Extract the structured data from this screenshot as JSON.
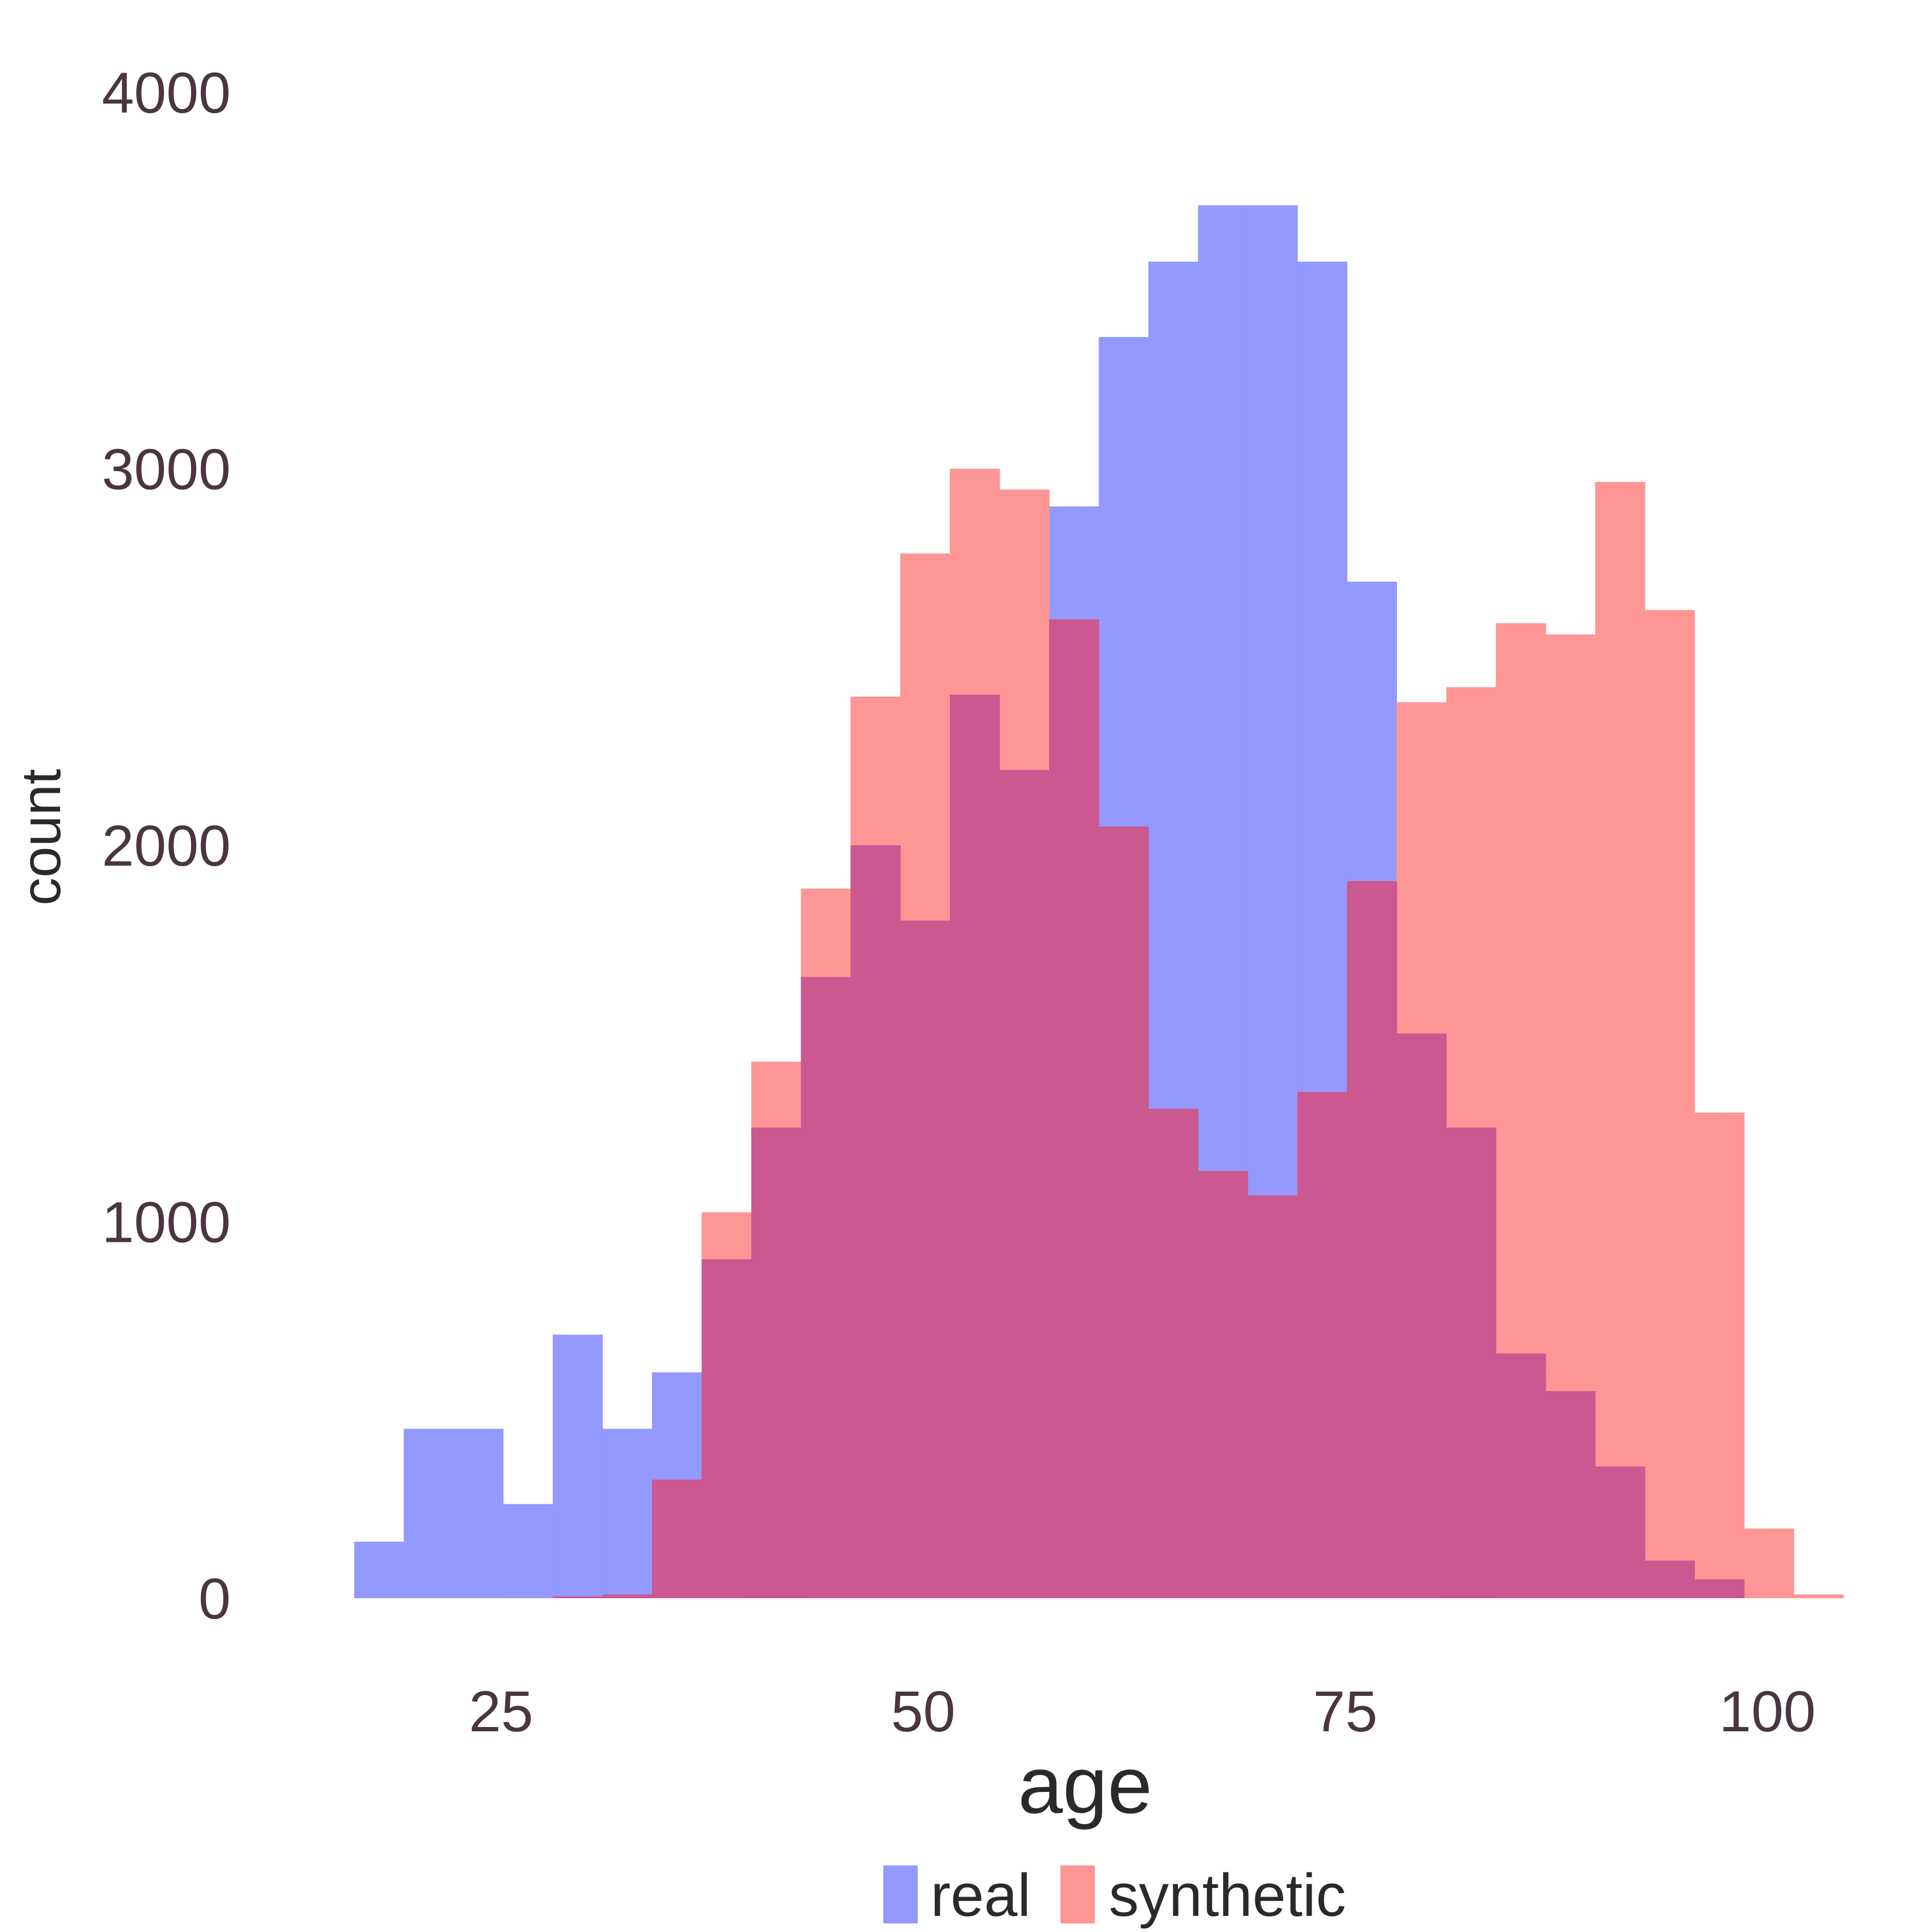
{
  "chart_data": {
    "type": "histogram",
    "xlabel": "age",
    "ylabel": "count",
    "x_ticks": [
      25,
      50,
      75,
      100
    ],
    "y_ticks": [
      0,
      1000,
      2000,
      3000,
      4000
    ],
    "xlim": [
      14.3,
      106
    ],
    "ylim": [
      0,
      4000
    ],
    "bin_width": 2.94,
    "first_bin_start": 16.3,
    "grid": false,
    "legend": {
      "position": "bottom",
      "entries": [
        "real",
        "synthetic"
      ]
    },
    "colors": {
      "real": "#9399fe",
      "synthetic": "#fe9695",
      "overlap": "#cb5891"
    },
    "series": [
      {
        "name": "real",
        "values": [
          150,
          450,
          450,
          250,
          700,
          450,
          600,
          900,
          1250,
          1650,
          2000,
          1800,
          2400,
          2200,
          2900,
          3350,
          3550,
          3700,
          3700,
          3550,
          2700,
          1500,
          1250,
          650,
          550,
          350,
          100,
          50,
          0
        ]
      },
      {
        "name": "synthetic",
        "values": [
          0,
          0,
          0,
          0,
          5,
          10,
          315,
          1025,
          1425,
          1885,
          2395,
          2775,
          3000,
          2945,
          2600,
          2050,
          1300,
          1135,
          1070,
          1345,
          1905,
          2380,
          2420,
          2590,
          2560,
          2965,
          2625,
          1290,
          185,
          10
        ]
      }
    ]
  }
}
